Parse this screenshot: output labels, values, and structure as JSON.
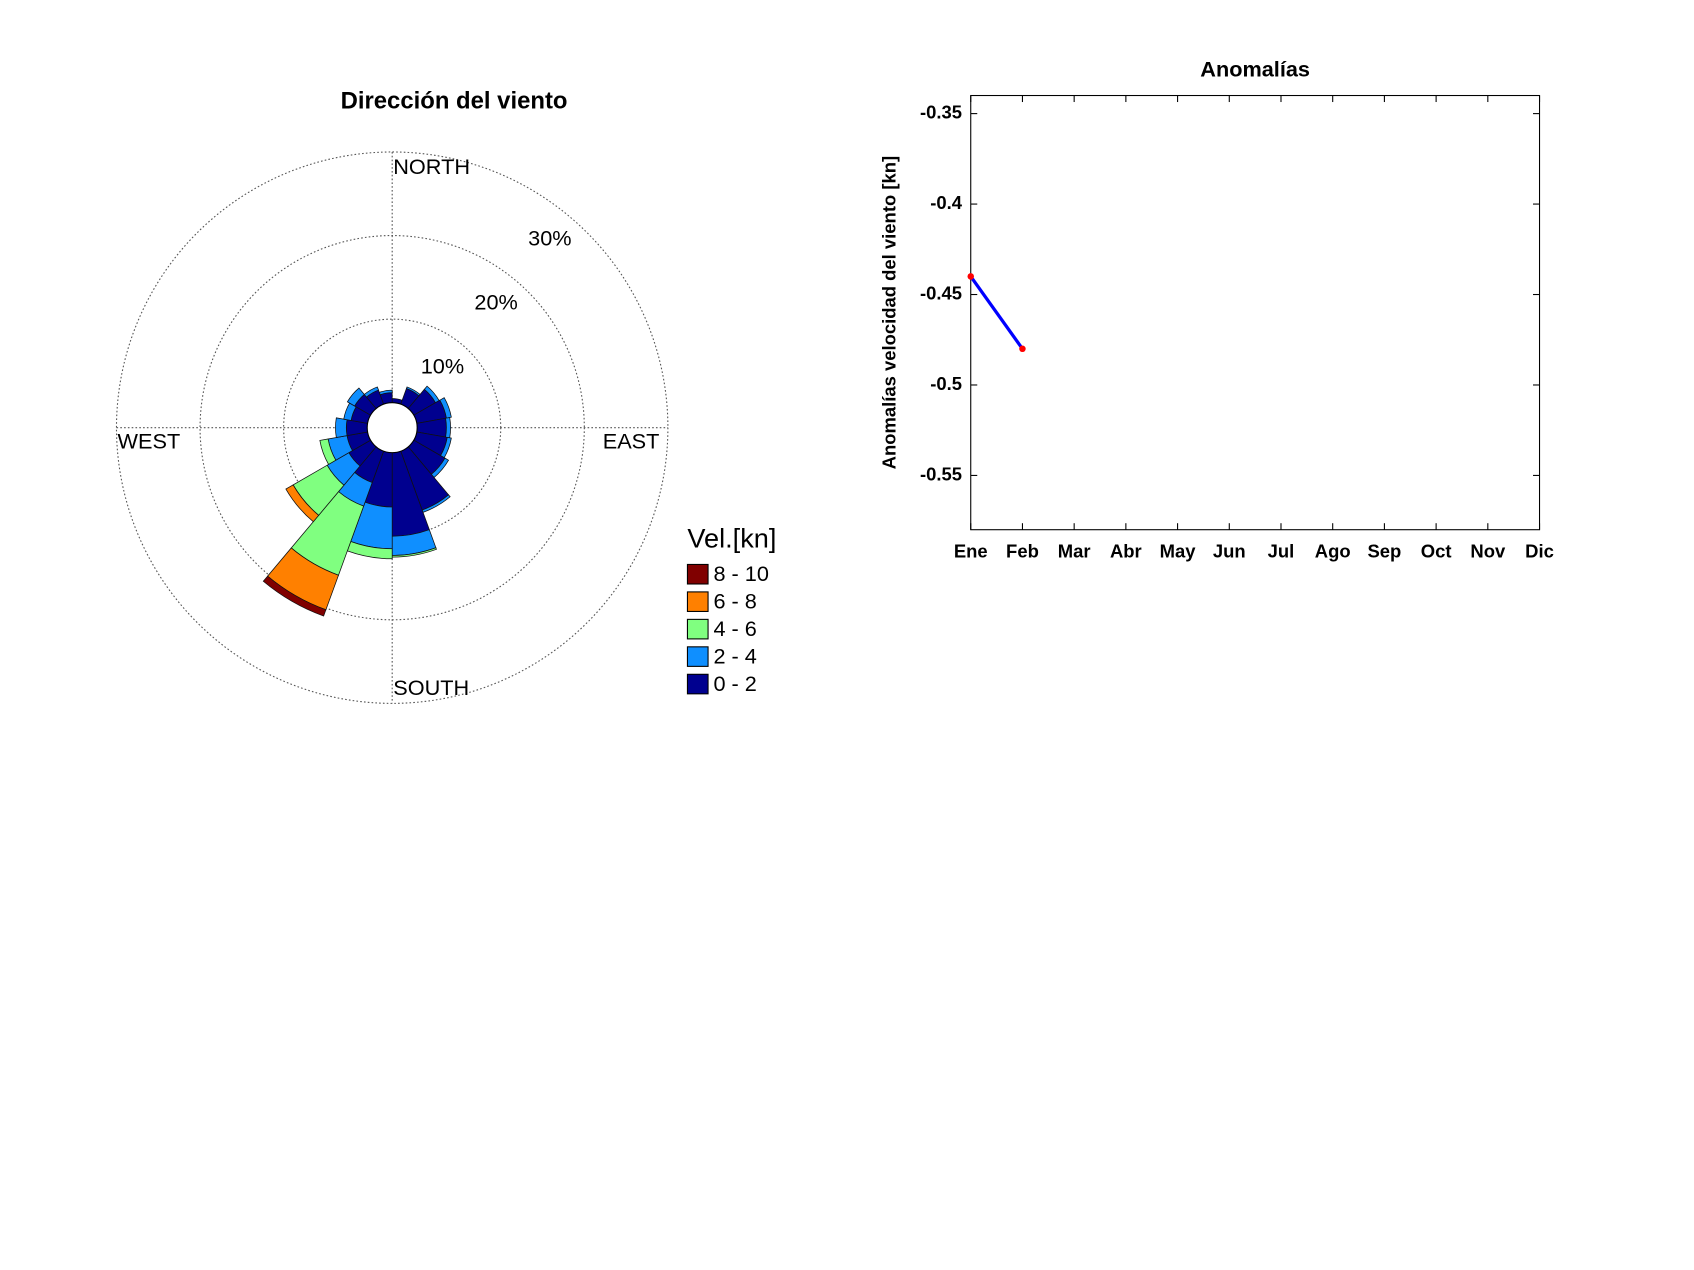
{
  "chart_data": [
    {
      "type": "windrose",
      "title": "Dirección del viento",
      "compass": [
        "NORTH",
        "EAST",
        "SOUTH",
        "WEST"
      ],
      "x": [
        10,
        30,
        50,
        70,
        90,
        110,
        130,
        150,
        170,
        190,
        210,
        230,
        250,
        270,
        290,
        310,
        330,
        350
      ],
      "series": [
        {
          "name": "0 - 2",
          "color": "#00008f",
          "values": [
            0.5,
            2.0,
            3.0,
            3.6,
            3.5,
            3.7,
            4.3,
            7.5,
            10,
            6.5,
            4,
            3,
            2.5,
            2.5,
            2,
            2.2,
            1.8,
            1.2
          ]
        },
        {
          "name": "2 - 4",
          "color": "#0f8fff",
          "values": [
            0,
            0.2,
            0.5,
            0.6,
            0.5,
            0.5,
            0.5,
            0.3,
            2.3,
            5,
            3,
            3,
            2.3,
            1.3,
            0.9,
            1.0,
            0.4,
            0.3
          ]
        },
        {
          "name": "4 - 6",
          "color": "#80ff80",
          "values": [
            0,
            0,
            0,
            0,
            0,
            0,
            0,
            0,
            0.2,
            1.2,
            8.8,
            4.7,
            1.0,
            0,
            0,
            0,
            0,
            0
          ]
        },
        {
          "name": "6 - 8",
          "color": "#ff8000",
          "values": [
            0,
            0,
            0,
            0,
            0,
            0,
            0,
            0,
            0,
            0,
            4.4,
            1.0,
            0,
            0,
            0,
            0,
            0,
            0
          ]
        },
        {
          "name": "8 - 10",
          "color": "#800000",
          "values": [
            0,
            0,
            0,
            0,
            0,
            0,
            0,
            0,
            0,
            0,
            0.8,
            0,
            0,
            0,
            0,
            0,
            0,
            0
          ]
        }
      ],
      "rlim": [
        0,
        30
      ],
      "rticks": [
        {
          "value": 10,
          "label": "10%"
        },
        {
          "value": 20,
          "label": "20%"
        },
        {
          "value": 30,
          "label": "30%"
        }
      ],
      "legend_title": "Vel.[kn]"
    },
    {
      "type": "line",
      "title": "Anomalías",
      "ylabel": "Anomalías velocidad del viento [kn]",
      "categories": [
        "Ene",
        "Feb",
        "Mar",
        "Abr",
        "May",
        "Jun",
        "Jul",
        "Ago",
        "Sep",
        "Oct",
        "Nov",
        "Dic"
      ],
      "values": [
        -0.44,
        -0.48,
        null,
        null,
        null,
        null,
        null,
        null,
        null,
        null,
        null,
        null
      ],
      "color": "#0000ff",
      "marker_color": "#ff0000",
      "ylim": [
        -0.58,
        -0.34
      ],
      "yticks": [
        -0.55,
        -0.5,
        -0.45,
        -0.4,
        -0.35
      ]
    }
  ]
}
